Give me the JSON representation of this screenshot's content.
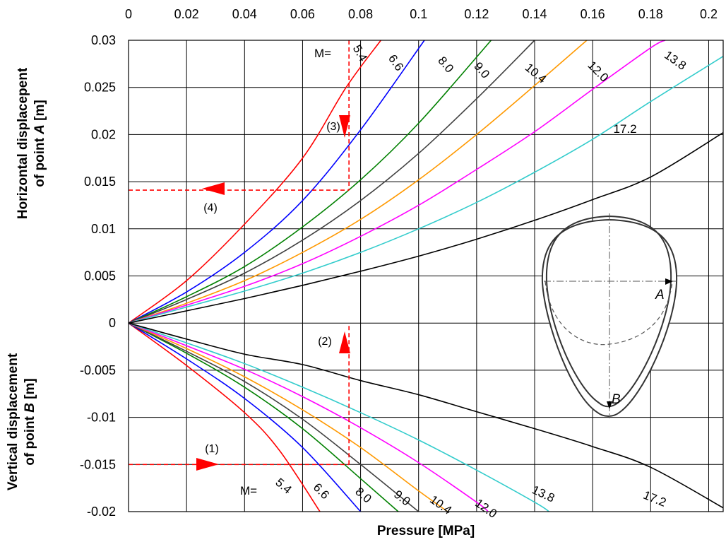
{
  "chart_data": {
    "type": "line",
    "xlabel": "Pressure [MPa]",
    "ylabel_top_line1": "Horizontal displacepent",
    "ylabel_top_line2_prefix": "of point ",
    "ylabel_top_point": "A",
    "ylabel_top_unit": " [m]",
    "ylabel_bottom_line1": "Vertical displacement",
    "ylabel_bottom_line2_prefix": "of point ",
    "ylabel_bottom_point": "B",
    "ylabel_bottom_unit": " [m]",
    "xlim": [
      0,
      0.205
    ],
    "ylim": [
      -0.02,
      0.03
    ],
    "x_ticks": [
      "0",
      "0.02",
      "0.04",
      "0.06",
      "0.08",
      "0.1",
      "0.12",
      "0.14",
      "0.16",
      "0.18",
      "0.2"
    ],
    "y_ticks": [
      "0.03",
      "0.025",
      "0.02",
      "0.015",
      "0.01",
      "0.005",
      "0",
      "-0.005",
      "-0.01",
      "-0.015",
      "-0.02"
    ],
    "x_tick_values": [
      0,
      0.02,
      0.04,
      0.06,
      0.08,
      0.1,
      0.12,
      0.14,
      0.16,
      0.18,
      0.2
    ],
    "y_tick_values": [
      0.03,
      0.025,
      0.02,
      0.015,
      0.01,
      0.005,
      0,
      -0.005,
      -0.01,
      -0.015,
      -0.02
    ],
    "grid": true,
    "m_label_top": "M=",
    "m_label_bottom": "M=",
    "series": [
      {
        "name": "5.4",
        "color": "#ff0000",
        "horizontal_A": [
          [
            0,
            0
          ],
          [
            0.02,
            0.0045
          ],
          [
            0.04,
            0.0105
          ],
          [
            0.06,
            0.0175
          ],
          [
            0.075,
            0.025
          ],
          [
            0.087,
            0.03
          ]
        ],
        "vertical_B": [
          [
            0,
            0
          ],
          [
            0.02,
            -0.0045
          ],
          [
            0.04,
            -0.0095
          ],
          [
            0.052,
            -0.0135
          ],
          [
            0.066,
            -0.02
          ]
        ]
      },
      {
        "name": "6.6",
        "color": "#0000ff",
        "horizontal_A": [
          [
            0,
            0
          ],
          [
            0.02,
            0.0033
          ],
          [
            0.04,
            0.0075
          ],
          [
            0.06,
            0.013
          ],
          [
            0.08,
            0.0205
          ],
          [
            0.102,
            0.03
          ]
        ],
        "vertical_B": [
          [
            0,
            0
          ],
          [
            0.02,
            -0.0038
          ],
          [
            0.04,
            -0.008
          ],
          [
            0.06,
            -0.0132
          ],
          [
            0.08,
            -0.02
          ]
        ]
      },
      {
        "name": "8.0",
        "color": "#008000",
        "horizontal_A": [
          [
            0,
            0
          ],
          [
            0.02,
            0.0028
          ],
          [
            0.04,
            0.006
          ],
          [
            0.06,
            0.0102
          ],
          [
            0.08,
            0.0152
          ],
          [
            0.1,
            0.0212
          ],
          [
            0.125,
            0.03
          ]
        ],
        "vertical_B": [
          [
            0,
            0
          ],
          [
            0.02,
            -0.0032
          ],
          [
            0.04,
            -0.0068
          ],
          [
            0.06,
            -0.0112
          ],
          [
            0.08,
            -0.0165
          ],
          [
            0.093,
            -0.02
          ]
        ]
      },
      {
        "name": "9.0",
        "color": "#404040",
        "horizontal_A": [
          [
            0,
            0
          ],
          [
            0.02,
            0.0025
          ],
          [
            0.04,
            0.0053
          ],
          [
            0.06,
            0.0088
          ],
          [
            0.08,
            0.013
          ],
          [
            0.1,
            0.018
          ],
          [
            0.12,
            0.0238
          ],
          [
            0.14,
            0.03
          ]
        ],
        "vertical_B": [
          [
            0,
            0
          ],
          [
            0.02,
            -0.003
          ],
          [
            0.04,
            -0.0062
          ],
          [
            0.06,
            -0.0102
          ],
          [
            0.08,
            -0.015
          ],
          [
            0.1,
            -0.02
          ]
        ]
      },
      {
        "name": "10.4",
        "color": "#ff9900",
        "horizontal_A": [
          [
            0,
            0
          ],
          [
            0.02,
            0.0021
          ],
          [
            0.04,
            0.0045
          ],
          [
            0.06,
            0.0075
          ],
          [
            0.08,
            0.011
          ],
          [
            0.1,
            0.0152
          ],
          [
            0.12,
            0.02
          ],
          [
            0.14,
            0.0252
          ],
          [
            0.158,
            0.03
          ]
        ],
        "vertical_B": [
          [
            0,
            0
          ],
          [
            0.02,
            -0.0027
          ],
          [
            0.04,
            -0.0057
          ],
          [
            0.06,
            -0.0092
          ],
          [
            0.08,
            -0.0132
          ],
          [
            0.1,
            -0.0178
          ],
          [
            0.11,
            -0.02
          ]
        ]
      },
      {
        "name": "12.0",
        "color": "#ff00ff",
        "horizontal_A": [
          [
            0,
            0
          ],
          [
            0.02,
            0.0019
          ],
          [
            0.04,
            0.0039
          ],
          [
            0.06,
            0.0063
          ],
          [
            0.08,
            0.0092
          ],
          [
            0.1,
            0.0125
          ],
          [
            0.12,
            0.0163
          ],
          [
            0.14,
            0.0203
          ],
          [
            0.16,
            0.0248
          ],
          [
            0.18,
            0.0292
          ],
          [
            0.185,
            0.03
          ]
        ],
        "vertical_B": [
          [
            0,
            0
          ],
          [
            0.02,
            -0.0024
          ],
          [
            0.04,
            -0.0049
          ],
          [
            0.06,
            -0.0078
          ],
          [
            0.08,
            -0.0111
          ],
          [
            0.1,
            -0.0148
          ],
          [
            0.12,
            -0.019
          ],
          [
            0.124,
            -0.02
          ]
        ]
      },
      {
        "name": "13.8",
        "color": "#33cccc",
        "horizontal_A": [
          [
            0,
            0
          ],
          [
            0.02,
            0.0017
          ],
          [
            0.04,
            0.0034
          ],
          [
            0.06,
            0.0053
          ],
          [
            0.08,
            0.0075
          ],
          [
            0.1,
            0.01
          ],
          [
            0.12,
            0.0128
          ],
          [
            0.14,
            0.016
          ],
          [
            0.16,
            0.0195
          ],
          [
            0.18,
            0.0235
          ],
          [
            0.205,
            0.0283
          ]
        ],
        "vertical_B": [
          [
            0,
            0
          ],
          [
            0.02,
            -0.0021
          ],
          [
            0.04,
            -0.0043
          ],
          [
            0.06,
            -0.0068
          ],
          [
            0.08,
            -0.0095
          ],
          [
            0.1,
            -0.0124
          ],
          [
            0.12,
            -0.0156
          ],
          [
            0.14,
            -0.019
          ],
          [
            0.145,
            -0.02
          ]
        ]
      },
      {
        "name": "17.2",
        "color": "#000000",
        "horizontal_A": [
          [
            0,
            0
          ],
          [
            0.02,
            0.0013
          ],
          [
            0.04,
            0.0026
          ],
          [
            0.06,
            0.004
          ],
          [
            0.08,
            0.0055
          ],
          [
            0.1,
            0.0071
          ],
          [
            0.12,
            0.0089
          ],
          [
            0.14,
            0.0109
          ],
          [
            0.16,
            0.0131
          ],
          [
            0.18,
            0.0155
          ],
          [
            0.205,
            0.0202
          ]
        ],
        "vertical_B": [
          [
            0,
            0
          ],
          [
            0.02,
            -0.0017
          ],
          [
            0.04,
            -0.0033
          ],
          [
            0.06,
            -0.0044
          ],
          [
            0.08,
            -0.0061
          ],
          [
            0.1,
            -0.0076
          ],
          [
            0.12,
            -0.0094
          ],
          [
            0.14,
            -0.0112
          ],
          [
            0.16,
            -0.0131
          ],
          [
            0.18,
            -0.0153
          ],
          [
            0.205,
            -0.0196
          ]
        ]
      }
    ],
    "procedure": {
      "color": "#ff0000",
      "x_value": 0.076,
      "start_y": -0.015,
      "intersect_y": 0.0141,
      "steps": [
        "(1)",
        "(2)",
        "(3)",
        "(4)"
      ]
    },
    "inset": {
      "label_A": "A",
      "label_B": "B"
    }
  }
}
